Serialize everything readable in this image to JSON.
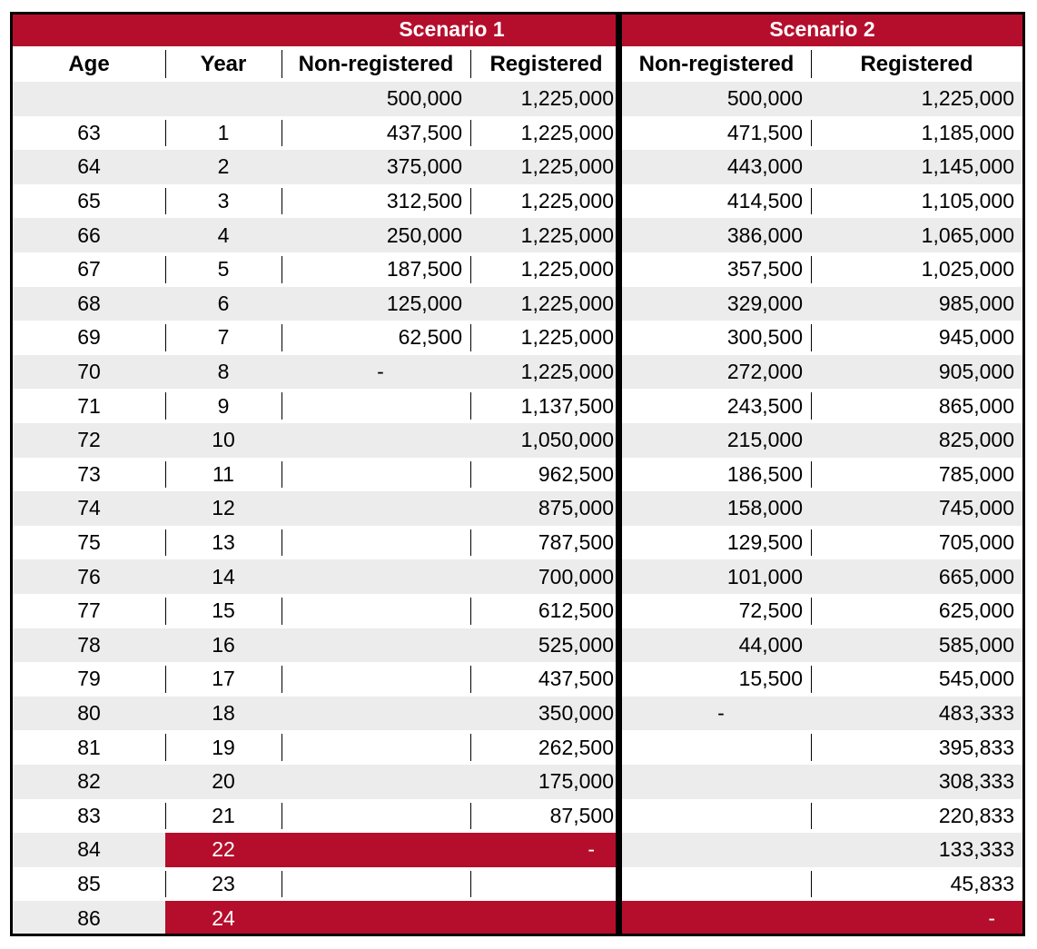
{
  "scenarios": [
    {
      "title": "Scenario 1"
    },
    {
      "title": "Scenario 2"
    }
  ],
  "headers": [
    "Age",
    "Year",
    "Non-registered",
    "Registered",
    "Non-registered",
    "Registered"
  ],
  "colors": {
    "accent": "#b50e2c",
    "stripe": "#ececec",
    "border": "#000000"
  },
  "rows": [
    {
      "age": "",
      "year": "",
      "s1_nonreg": "500,000",
      "s1_reg": "1,225,000",
      "s2_nonreg": "500,000",
      "s2_reg": "1,225,000"
    },
    {
      "age": "63",
      "year": "1",
      "s1_nonreg": "437,500",
      "s1_reg": "1,225,000",
      "s2_nonreg": "471,500",
      "s2_reg": "1,185,000"
    },
    {
      "age": "64",
      "year": "2",
      "s1_nonreg": "375,000",
      "s1_reg": "1,225,000",
      "s2_nonreg": "443,000",
      "s2_reg": "1,145,000"
    },
    {
      "age": "65",
      "year": "3",
      "s1_nonreg": "312,500",
      "s1_reg": "1,225,000",
      "s2_nonreg": "414,500",
      "s2_reg": "1,105,000"
    },
    {
      "age": "66",
      "year": "4",
      "s1_nonreg": "250,000",
      "s1_reg": "1,225,000",
      "s2_nonreg": "386,000",
      "s2_reg": "1,065,000"
    },
    {
      "age": "67",
      "year": "5",
      "s1_nonreg": "187,500",
      "s1_reg": "1,225,000",
      "s2_nonreg": "357,500",
      "s2_reg": "1,025,000"
    },
    {
      "age": "68",
      "year": "6",
      "s1_nonreg": "125,000",
      "s1_reg": "1,225,000",
      "s2_nonreg": "329,000",
      "s2_reg": "985,000"
    },
    {
      "age": "69",
      "year": "7",
      "s1_nonreg": "62,500",
      "s1_reg": "1,225,000",
      "s2_nonreg": "300,500",
      "s2_reg": "945,000"
    },
    {
      "age": "70",
      "year": "8",
      "s1_nonreg": "-",
      "s1_reg": "1,225,000",
      "s2_nonreg": "272,000",
      "s2_reg": "905,000"
    },
    {
      "age": "71",
      "year": "9",
      "s1_nonreg": "",
      "s1_reg": "1,137,500",
      "s2_nonreg": "243,500",
      "s2_reg": "865,000"
    },
    {
      "age": "72",
      "year": "10",
      "s1_nonreg": "",
      "s1_reg": "1,050,000",
      "s2_nonreg": "215,000",
      "s2_reg": "825,000"
    },
    {
      "age": "73",
      "year": "11",
      "s1_nonreg": "",
      "s1_reg": "962,500",
      "s2_nonreg": "186,500",
      "s2_reg": "785,000"
    },
    {
      "age": "74",
      "year": "12",
      "s1_nonreg": "",
      "s1_reg": "875,000",
      "s2_nonreg": "158,000",
      "s2_reg": "745,000"
    },
    {
      "age": "75",
      "year": "13",
      "s1_nonreg": "",
      "s1_reg": "787,500",
      "s2_nonreg": "129,500",
      "s2_reg": "705,000"
    },
    {
      "age": "76",
      "year": "14",
      "s1_nonreg": "",
      "s1_reg": "700,000",
      "s2_nonreg": "101,000",
      "s2_reg": "665,000"
    },
    {
      "age": "77",
      "year": "15",
      "s1_nonreg": "",
      "s1_reg": "612,500",
      "s2_nonreg": "72,500",
      "s2_reg": "625,000"
    },
    {
      "age": "78",
      "year": "16",
      "s1_nonreg": "",
      "s1_reg": "525,000",
      "s2_nonreg": "44,000",
      "s2_reg": "585,000"
    },
    {
      "age": "79",
      "year": "17",
      "s1_nonreg": "",
      "s1_reg": "437,500",
      "s2_nonreg": "15,500",
      "s2_reg": "545,000"
    },
    {
      "age": "80",
      "year": "18",
      "s1_nonreg": "",
      "s1_reg": "350,000",
      "s2_nonreg": "-",
      "s2_reg": "483,333"
    },
    {
      "age": "81",
      "year": "19",
      "s1_nonreg": "",
      "s1_reg": "262,500",
      "s2_nonreg": "",
      "s2_reg": "395,833"
    },
    {
      "age": "82",
      "year": "20",
      "s1_nonreg": "",
      "s1_reg": "175,000",
      "s2_nonreg": "",
      "s2_reg": "308,333"
    },
    {
      "age": "83",
      "year": "21",
      "s1_nonreg": "",
      "s1_reg": "87,500",
      "s2_nonreg": "",
      "s2_reg": "220,833"
    },
    {
      "age": "84",
      "year": "22",
      "s1_nonreg": "",
      "s1_reg": "-",
      "s2_nonreg": "",
      "s2_reg": "133,333",
      "s1_highlight": true
    },
    {
      "age": "85",
      "year": "23",
      "s1_nonreg": "",
      "s1_reg": "",
      "s2_nonreg": "",
      "s2_reg": "45,833"
    },
    {
      "age": "86",
      "year": "24",
      "s1_nonreg": "",
      "s1_reg": "",
      "s2_nonreg": "",
      "s2_reg": "-",
      "s1_highlight": true,
      "s2_highlight": true
    }
  ]
}
